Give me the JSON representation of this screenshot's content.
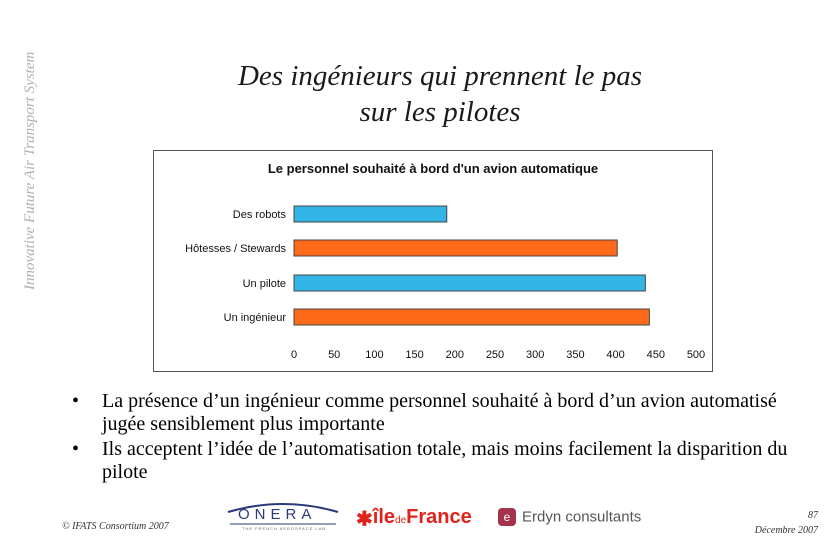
{
  "side_text": "Innovative Future Air Transport System",
  "title_lines": [
    "Des ingénieurs qui prennent le pas",
    "sur les pilotes"
  ],
  "chart_data": {
    "type": "bar",
    "orientation": "horizontal",
    "title": "Le personnel souhaité à bord d'un avion automatique",
    "categories": [
      "Des robots",
      "Hôtesses / Stewards",
      "Un pilote",
      "Un ingénieur"
    ],
    "values": [
      190,
      402,
      437,
      442
    ],
    "bar_colors": [
      "#33b5e5",
      "#ff6a1a",
      "#33b5e5",
      "#ff6a1a"
    ],
    "xlim": [
      0,
      500
    ],
    "xticks": [
      0,
      50,
      100,
      150,
      200,
      250,
      300,
      350,
      400,
      450,
      500
    ],
    "xlabel": "",
    "ylabel": "",
    "grid": false
  },
  "bullets": [
    "La présence d’un ingénieur comme personnel souhaité à bord d’un avion automatisé jugée sensiblement plus importante",
    "Ils acceptent l’idée de l’automatisation totale, mais moins facilement la disparition du pilote"
  ],
  "bullet_symbol": "•",
  "footer": {
    "copyright": "© IFATS Consortium 2007",
    "page_number": "87",
    "date": "Décembre 2007"
  },
  "logos": {
    "onera_name": "ONERA",
    "onera_tagline": "THE FRENCH AEROSPACE LAB",
    "idf_star": "✱",
    "idf_ile": "île",
    "idf_de": "de",
    "idf_france": "France",
    "erdyn_icon": "e",
    "erdyn_name": "Erdyn consultants"
  }
}
